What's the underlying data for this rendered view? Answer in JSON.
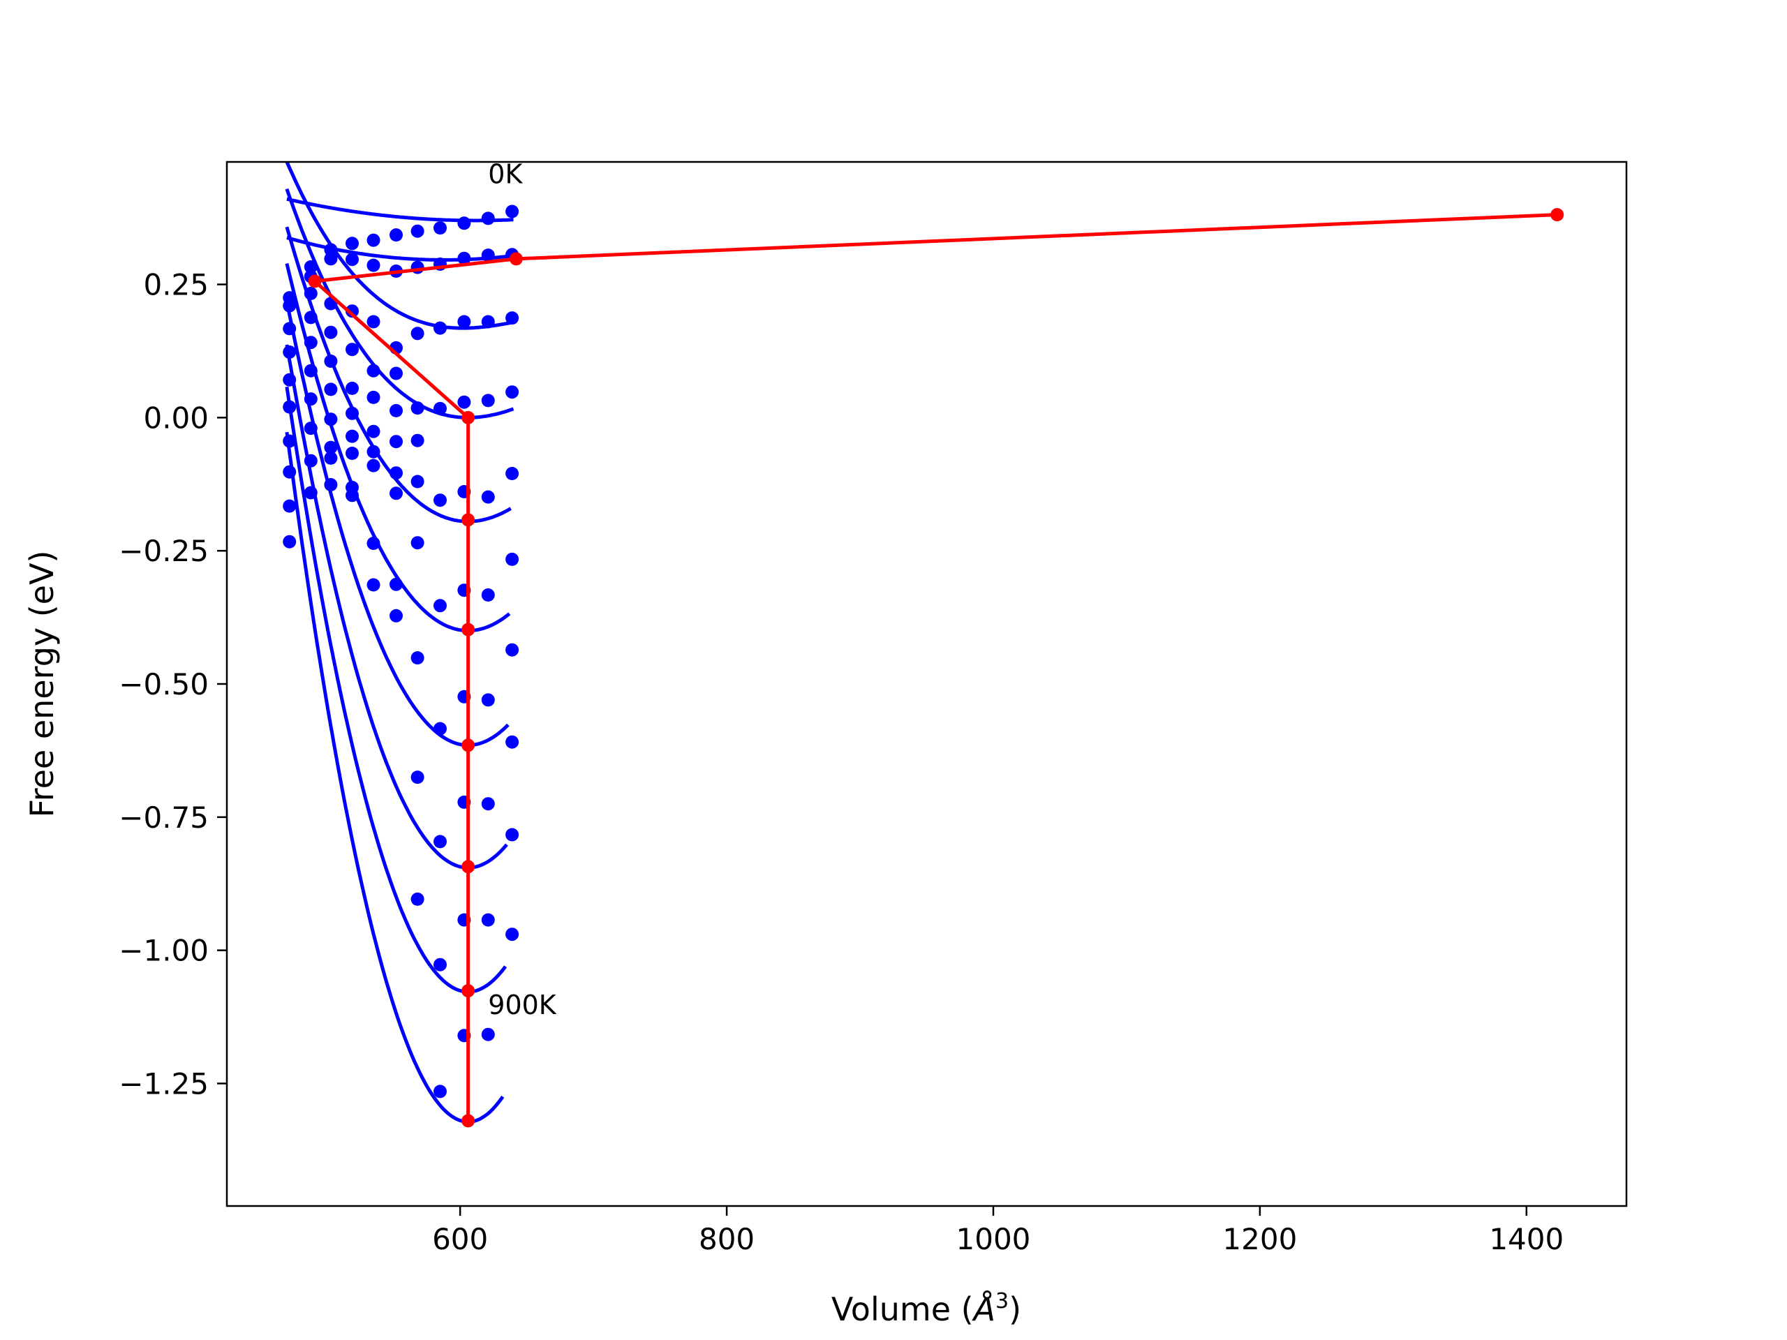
{
  "chart_data": {
    "type": "line",
    "title": "",
    "xlabel": "Volume (",
    "xlabel_unit": "Å",
    "xlabel_exp": "3",
    "xlabel_close": ")",
    "ylabel": "Free energy (eV)",
    "xlim": [
      425,
      1475
    ],
    "ylim": [
      -1.48,
      0.48
    ],
    "xticks": [
      600,
      800,
      1000,
      1200,
      1400
    ],
    "xtick_labels": [
      "600",
      "800",
      "1000",
      "1200",
      "1400"
    ],
    "yticks": [
      -1.25,
      -1.0,
      -0.75,
      -0.5,
      -0.25,
      0.0,
      0.25
    ],
    "ytick_labels": [
      "−1.25",
      "−1.00",
      "−0.75",
      "−0.50",
      "−0.25",
      "0.00",
      "0.25"
    ],
    "grid": false,
    "annotations": [
      {
        "text": "0K",
        "x": 621,
        "y": 0.44
      },
      {
        "text": "900K",
        "x": 621,
        "y": -1.12
      }
    ],
    "colors": {
      "points": "#0000ff",
      "fits": "#0000ff",
      "path": "#ff0000"
    },
    "volumes": [
      472,
      488,
      503,
      519,
      535,
      552,
      568,
      585,
      603,
      621,
      639
    ],
    "points": [
      [
        0.21,
        0.283,
        0.315,
        0.327,
        0.333,
        0.343,
        0.35,
        0.356,
        0.365,
        0.374,
        0.387
      ],
      [
        0.225,
        0.265,
        0.298,
        0.297,
        0.286,
        0.275,
        0.282,
        0.288,
        0.299,
        0.305,
        0.306
      ],
      [
        0.167,
        0.233,
        0.214,
        0.2,
        0.18,
        0.131,
        0.158,
        0.168,
        0.18,
        0.18,
        0.187
      ],
      [
        0.123,
        0.188,
        0.16,
        0.128,
        0.088,
        0.083,
        0.018,
        0.017,
        0.029,
        0.032,
        0.048
      ],
      [
        0.071,
        0.141,
        0.106,
        0.055,
        0.038,
        0.013,
        -0.043,
        -0.155,
        -0.139,
        -0.149,
        -0.105
      ],
      [
        0.02,
        0.088,
        0.053,
        0.008,
        -0.026,
        -0.045,
        -0.12,
        -0.353,
        -0.324,
        -0.333,
        -0.266
      ],
      [
        -0.044,
        0.035,
        -0.003,
        -0.035,
        -0.064,
        -0.104,
        -0.235,
        -0.584,
        -0.524,
        -0.53,
        -0.436
      ],
      [
        -0.102,
        -0.02,
        -0.056,
        -0.067,
        -0.09,
        -0.142,
        -0.451,
        -0.796,
        -0.722,
        -0.725,
        -0.609
      ],
      [
        -0.166,
        -0.081,
        -0.076,
        -0.131,
        -0.236,
        -0.313,
        -0.675,
        -1.027,
        -0.943,
        -0.943,
        -0.783
      ],
      [
        -0.233,
        -0.141,
        -0.126,
        -0.146,
        -0.314,
        -0.372,
        -0.904,
        -1.265,
        -1.16,
        -1.158,
        -0.97
      ]
    ],
    "fits": [
      {
        "V0": 612,
        "F0": 0.37,
        "a": 2e-06,
        "b": 0.0,
        "xmax": 640
      },
      {
        "V0": 588,
        "F0": 0.296,
        "a": 3e-06,
        "b": 0.0,
        "xmax": 640
      },
      {
        "V0": 602,
        "F0": 0.168,
        "a": 1e-05,
        "b": -6e-08,
        "xmax": 640
      },
      {
        "V0": 606,
        "F0": 0.0,
        "a": 1.6e-05,
        "b": -5.3e-08,
        "xmax": 640
      },
      {
        "V0": 606,
        "F0": -0.195,
        "a": 2.5e-05,
        "b": -3.6e-08,
        "xmax": 638
      },
      {
        "V0": 606,
        "F0": -0.4,
        "a": 3.4e-05,
        "b": -2.4e-08,
        "xmax": 637
      },
      {
        "V0": 606,
        "F0": -0.615,
        "a": 4.3e-05,
        "b": -1.5e-08,
        "xmax": 636
      },
      {
        "V0": 606,
        "F0": -0.845,
        "a": 5.2e-05,
        "b": -8e-09,
        "xmax": 635
      },
      {
        "V0": 606,
        "F0": -1.078,
        "a": 6.1e-05,
        "b": -3e-09,
        "xmax": 634
      },
      {
        "V0": 606,
        "F0": -1.322,
        "a": 7e-05,
        "b": 0.0,
        "xmax": 632
      }
    ],
    "minima_path": {
      "x": [
        1423,
        642,
        491,
        606,
        606,
        606,
        606,
        606,
        606,
        606
      ],
      "y": [
        0.381,
        0.298,
        0.256,
        0.0,
        -0.192,
        -0.398,
        -0.615,
        -0.843,
        -1.076,
        -1.32
      ]
    }
  }
}
